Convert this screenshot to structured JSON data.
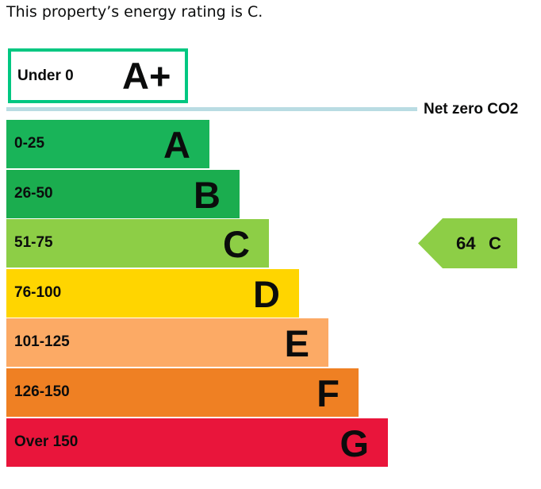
{
  "headline": "This property’s energy rating is C.",
  "aplus": {
    "range": "Under 0",
    "letter": "A+",
    "color": "#00c781"
  },
  "net_zero": {
    "label": "Net zero CO2",
    "color": "#b9dce3"
  },
  "current_rating": {
    "score": "64",
    "letter": "C",
    "color": "#8dce46"
  },
  "chart_data": {
    "type": "bar",
    "title": "",
    "categories": [
      "A+",
      "A",
      "B",
      "C",
      "D",
      "E",
      "F",
      "G"
    ],
    "bands": [
      {
        "letter": "A",
        "range": "0-25",
        "color": "#19b459"
      },
      {
        "letter": "B",
        "range": "26-50",
        "color": "#1bad4f"
      },
      {
        "letter": "C",
        "range": "51-75",
        "color": "#8dce46"
      },
      {
        "letter": "D",
        "range": "76-100",
        "color": "#ffd500"
      },
      {
        "letter": "E",
        "range": "101-125",
        "color": "#fcaa65"
      },
      {
        "letter": "F",
        "range": "126-150",
        "color": "#ef8023"
      },
      {
        "letter": "G",
        "range": "Over 150",
        "color": "#e9153b"
      }
    ],
    "current": {
      "value": 64,
      "band": "C"
    },
    "net_zero_threshold": 0
  }
}
